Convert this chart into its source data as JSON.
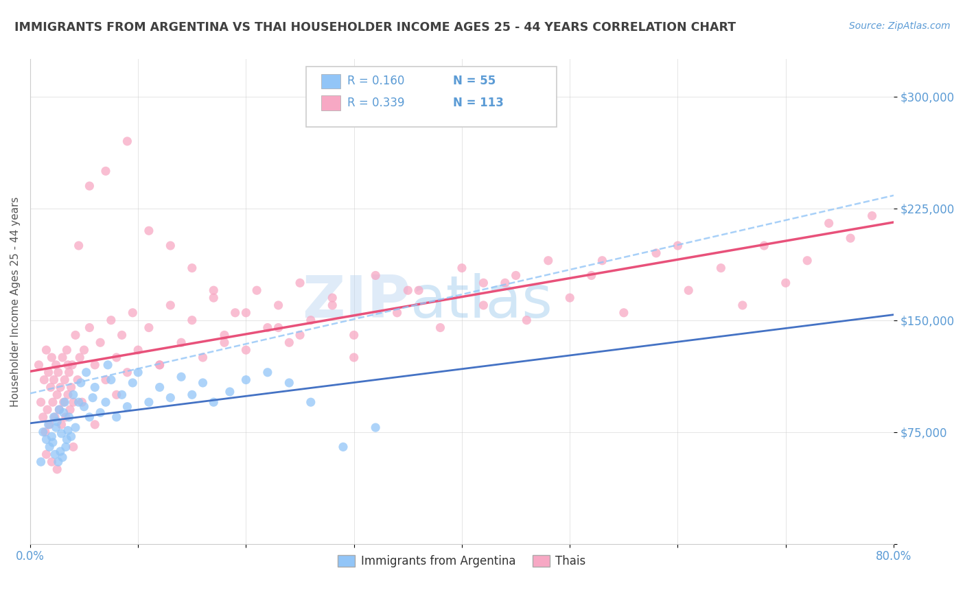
{
  "title": "IMMIGRANTS FROM ARGENTINA VS THAI HOUSEHOLDER INCOME AGES 25 - 44 YEARS CORRELATION CHART",
  "source": "Source: ZipAtlas.com",
  "ylabel": "Householder Income Ages 25 - 44 years",
  "xlim": [
    0.0,
    0.8
  ],
  "ylim": [
    0,
    325000
  ],
  "xticks": [
    0.0,
    0.1,
    0.2,
    0.3,
    0.4,
    0.5,
    0.6,
    0.7,
    0.8
  ],
  "xticklabels": [
    "0.0%",
    "",
    "",
    "",
    "",
    "",
    "",
    "",
    "80.0%"
  ],
  "ytick_values": [
    0,
    75000,
    150000,
    225000,
    300000
  ],
  "ytick_labels": [
    "",
    "$75,000",
    "$150,000",
    "$225,000",
    "$300,000"
  ],
  "legend_r1": "R = 0.160",
  "legend_n1": "N = 55",
  "legend_r2": "R = 0.339",
  "legend_n2": "N = 113",
  "color_argentina": "#92c5f7",
  "color_thais": "#f7a8c4",
  "color_trendline_argentina": "#4472c4",
  "color_trendline_argentina_dashed": "#92c5f7",
  "color_trendline_thais": "#e8517a",
  "color_axis_labels": "#5b9bd5",
  "color_title": "#404040",
  "watermark_zip": "ZIP",
  "watermark_atlas": "atlas",
  "argentina_x": [
    0.01,
    0.012,
    0.015,
    0.017,
    0.018,
    0.02,
    0.021,
    0.022,
    0.023,
    0.024,
    0.025,
    0.026,
    0.027,
    0.028,
    0.029,
    0.03,
    0.031,
    0.032,
    0.033,
    0.034,
    0.035,
    0.036,
    0.038,
    0.04,
    0.042,
    0.045,
    0.047,
    0.05,
    0.052,
    0.055,
    0.058,
    0.06,
    0.065,
    0.07,
    0.072,
    0.075,
    0.08,
    0.085,
    0.09,
    0.095,
    0.1,
    0.11,
    0.12,
    0.13,
    0.14,
    0.15,
    0.16,
    0.17,
    0.185,
    0.2,
    0.22,
    0.24,
    0.26,
    0.29,
    0.32
  ],
  "argentina_y": [
    55000,
    75000,
    70000,
    80000,
    65000,
    72000,
    68000,
    85000,
    60000,
    78000,
    82000,
    55000,
    90000,
    62000,
    74000,
    58000,
    88000,
    95000,
    65000,
    70000,
    76000,
    85000,
    72000,
    100000,
    78000,
    95000,
    108000,
    92000,
    115000,
    85000,
    98000,
    105000,
    88000,
    95000,
    120000,
    110000,
    85000,
    100000,
    92000,
    108000,
    115000,
    95000,
    105000,
    98000,
    112000,
    100000,
    108000,
    95000,
    102000,
    110000,
    115000,
    108000,
    95000,
    65000,
    78000
  ],
  "thais_x": [
    0.008,
    0.01,
    0.012,
    0.013,
    0.014,
    0.015,
    0.016,
    0.017,
    0.018,
    0.019,
    0.02,
    0.021,
    0.022,
    0.023,
    0.024,
    0.025,
    0.026,
    0.027,
    0.028,
    0.029,
    0.03,
    0.031,
    0.032,
    0.033,
    0.034,
    0.035,
    0.036,
    0.037,
    0.038,
    0.039,
    0.04,
    0.042,
    0.044,
    0.046,
    0.048,
    0.05,
    0.055,
    0.06,
    0.065,
    0.07,
    0.075,
    0.08,
    0.085,
    0.09,
    0.095,
    0.1,
    0.11,
    0.12,
    0.13,
    0.14,
    0.15,
    0.16,
    0.17,
    0.18,
    0.19,
    0.2,
    0.21,
    0.22,
    0.23,
    0.24,
    0.25,
    0.26,
    0.28,
    0.3,
    0.32,
    0.34,
    0.36,
    0.38,
    0.4,
    0.42,
    0.44,
    0.46,
    0.48,
    0.5,
    0.52,
    0.55,
    0.58,
    0.61,
    0.64,
    0.66,
    0.68,
    0.7,
    0.72,
    0.74,
    0.76,
    0.78,
    0.6,
    0.45,
    0.35,
    0.28,
    0.23,
    0.18,
    0.12,
    0.08,
    0.06,
    0.04,
    0.025,
    0.015,
    0.02,
    0.035,
    0.045,
    0.055,
    0.07,
    0.09,
    0.11,
    0.13,
    0.15,
    0.17,
    0.2,
    0.25,
    0.3,
    0.42,
    0.53
  ],
  "thais_y": [
    120000,
    95000,
    85000,
    110000,
    75000,
    130000,
    90000,
    115000,
    80000,
    105000,
    125000,
    95000,
    110000,
    85000,
    120000,
    100000,
    115000,
    90000,
    105000,
    80000,
    125000,
    95000,
    110000,
    85000,
    130000,
    100000,
    115000,
    90000,
    105000,
    120000,
    95000,
    140000,
    110000,
    125000,
    95000,
    130000,
    145000,
    120000,
    135000,
    110000,
    150000,
    125000,
    140000,
    115000,
    155000,
    130000,
    145000,
    120000,
    160000,
    135000,
    150000,
    125000,
    165000,
    140000,
    155000,
    130000,
    170000,
    145000,
    160000,
    135000,
    175000,
    150000,
    165000,
    140000,
    180000,
    155000,
    170000,
    145000,
    185000,
    160000,
    175000,
    150000,
    190000,
    165000,
    180000,
    155000,
    195000,
    170000,
    185000,
    160000,
    200000,
    175000,
    190000,
    215000,
    205000,
    220000,
    200000,
    180000,
    170000,
    160000,
    145000,
    135000,
    120000,
    100000,
    80000,
    65000,
    50000,
    60000,
    55000,
    120000,
    200000,
    240000,
    250000,
    270000,
    210000,
    200000,
    185000,
    170000,
    155000,
    140000,
    125000,
    175000,
    190000
  ]
}
